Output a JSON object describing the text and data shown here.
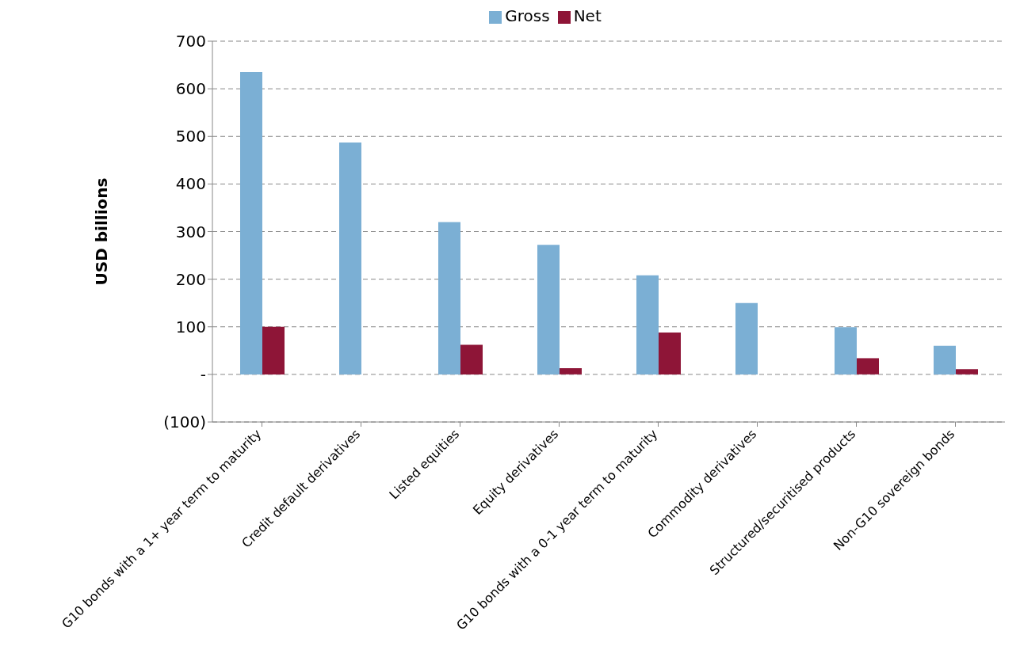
{
  "chart_data": {
    "type": "bar",
    "ylabel": "USD billions",
    "categories": [
      "G10 bonds with a 1+ year term to maturity",
      "Credit default derivatives",
      "Listed equities",
      "Equity derivatives",
      "G10 bonds with a 0-1 year term to maturity",
      "Commodity derivatives",
      "Structured/securitised products",
      "Non-G10 sovereign bonds"
    ],
    "series": [
      {
        "name": "Gross",
        "color": "#7bafd4",
        "values": [
          635,
          487,
          320,
          272,
          208,
          150,
          99,
          60
        ]
      },
      {
        "name": "Net",
        "color": "#8e1537",
        "values": [
          100,
          0,
          62,
          13,
          88,
          0,
          34,
          11
        ]
      }
    ],
    "ylim": [
      -100,
      700
    ],
    "yticks": [
      {
        "value": -100,
        "label": "(100)"
      },
      {
        "value": 0,
        "label": "-"
      },
      100,
      200,
      300,
      400,
      500,
      600,
      700
    ],
    "grid": "y",
    "legend": "top"
  }
}
